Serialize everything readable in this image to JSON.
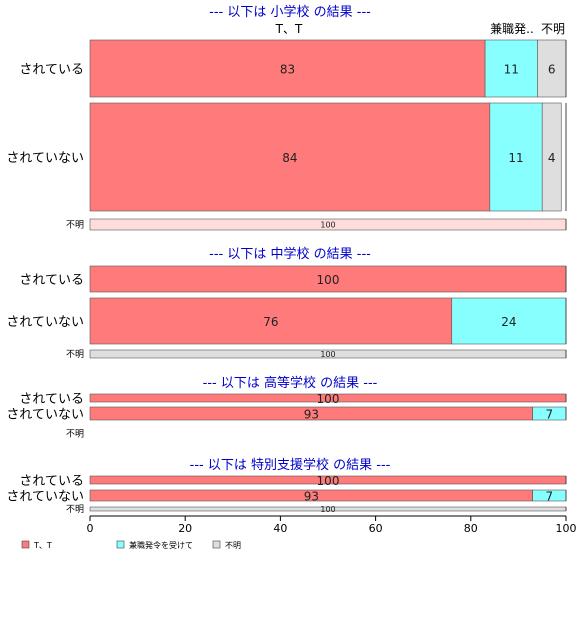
{
  "chart_data": {
    "type": "bar",
    "orientation": "horizontal",
    "stacked": true,
    "xlim": [
      0,
      100
    ],
    "x_ticks": [
      "0",
      "20",
      "40",
      "60",
      "80",
      "100"
    ],
    "series": [
      {
        "name": "T、T",
        "color": "#ff7b7b"
      },
      {
        "name": "兼職発令を受けて",
        "color": "#88ffff"
      },
      {
        "name": "不明",
        "color": "#dedede"
      }
    ],
    "top_column_labels": [
      "T、T",
      "兼職発..",
      "不明"
    ],
    "panels": [
      {
        "title": "--- 以下は 小学校 の結果 ---",
        "rows": [
          {
            "label": "されている",
            "values": [
              83,
              11,
              6
            ],
            "value_labels": [
              "83",
              "11",
              "6"
            ]
          },
          {
            "label": "されていない",
            "values": [
              84,
              11,
              4
            ],
            "value_labels": [
              "84",
              "11",
              "4"
            ]
          },
          {
            "label": "不明",
            "values": [
              0,
              0,
              100
            ],
            "value_labels": [
              "",
              "",
              "100"
            ],
            "pink": true
          }
        ]
      },
      {
        "title": "--- 以下は 中学校 の結果 ---",
        "rows": [
          {
            "label": "されている",
            "values": [
              100,
              0,
              0
            ],
            "value_labels": [
              "100",
              "",
              ""
            ]
          },
          {
            "label": "されていない",
            "values": [
              76,
              24,
              0
            ],
            "value_labels": [
              "76",
              "24",
              ""
            ]
          },
          {
            "label": "不明",
            "values": [
              0,
              0,
              100
            ],
            "value_labels": [
              "",
              "",
              "100"
            ]
          }
        ]
      },
      {
        "title": "--- 以下は 高等学校 の結果 ---",
        "rows": [
          {
            "label": "されている",
            "values": [
              100,
              0,
              0
            ],
            "value_labels": [
              "100",
              "",
              ""
            ]
          },
          {
            "label": "されていない",
            "values": [
              93,
              7,
              0
            ],
            "value_labels": [
              "93",
              "7",
              ""
            ]
          },
          {
            "label": "不明",
            "values": [
              0,
              0,
              0
            ],
            "value_labels": [
              "",
              "",
              ""
            ]
          }
        ]
      },
      {
        "title": "--- 以下は 特別支援学校 の結果 ---",
        "rows": [
          {
            "label": "されている",
            "values": [
              100,
              0,
              0
            ],
            "value_labels": [
              "100",
              "",
              ""
            ]
          },
          {
            "label": "されていない",
            "values": [
              93,
              7,
              0
            ],
            "value_labels": [
              "93",
              "7",
              ""
            ]
          },
          {
            "label": "不明",
            "values": [
              0,
              0,
              100
            ],
            "value_labels": [
              "",
              "",
              "100"
            ]
          }
        ]
      }
    ],
    "colors": {
      "title": "#0000cc",
      "pink_fill": "#ffdcdc"
    },
    "legend_position": "bottom-left"
  }
}
